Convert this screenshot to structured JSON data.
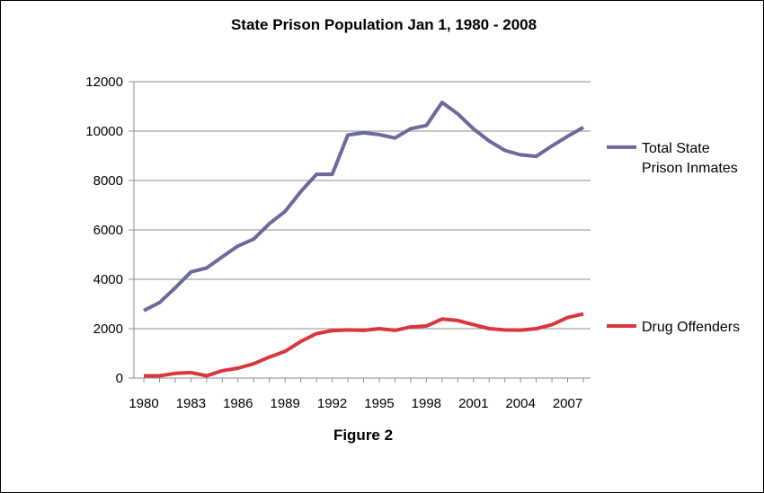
{
  "chart_data": {
    "type": "line",
    "title": "State Prison Population Jan 1, 1980 - 2008",
    "caption": "Figure 2",
    "xlabel": "",
    "ylabel": "",
    "x": [
      1980,
      1981,
      1982,
      1983,
      1984,
      1985,
      1986,
      1987,
      1988,
      1989,
      1990,
      1991,
      1992,
      1993,
      1994,
      1995,
      1996,
      1997,
      1998,
      1999,
      2000,
      2001,
      2002,
      2003,
      2004,
      2005,
      2006,
      2007,
      2008
    ],
    "xticks": [
      "1980",
      "1983",
      "1986",
      "1989",
      "1992",
      "1995",
      "1998",
      "2001",
      "2004",
      "2007"
    ],
    "yticks": [
      "0",
      "2000",
      "4000",
      "6000",
      "8000",
      "10000",
      "12000"
    ],
    "ylim": [
      0,
      12000
    ],
    "grid": true,
    "legend_position": "right",
    "series": [
      {
        "name": "Total State Prison Inmates",
        "legend_lines": [
          "Total State",
          "Prison Inmates"
        ],
        "color": "#6a6a9c",
        "values": [
          2730,
          3060,
          3650,
          4300,
          4460,
          4910,
          5350,
          5630,
          6250,
          6750,
          7550,
          8250,
          8250,
          9840,
          9930,
          9860,
          9720,
          10100,
          10230,
          11160,
          10700,
          10090,
          9600,
          9220,
          9040,
          8980,
          9400,
          9790,
          10150
        ]
      },
      {
        "name": "Drug Offenders",
        "legend_lines": [
          "Drug Offenders"
        ],
        "color": "#d9363e",
        "values": [
          90,
          90,
          190,
          220,
          90,
          300,
          400,
          580,
          850,
          1080,
          1480,
          1800,
          1920,
          1950,
          1930,
          2000,
          1930,
          2070,
          2110,
          2390,
          2330,
          2160,
          2000,
          1950,
          1940,
          2000,
          2160,
          2450,
          2600
        ]
      }
    ]
  }
}
